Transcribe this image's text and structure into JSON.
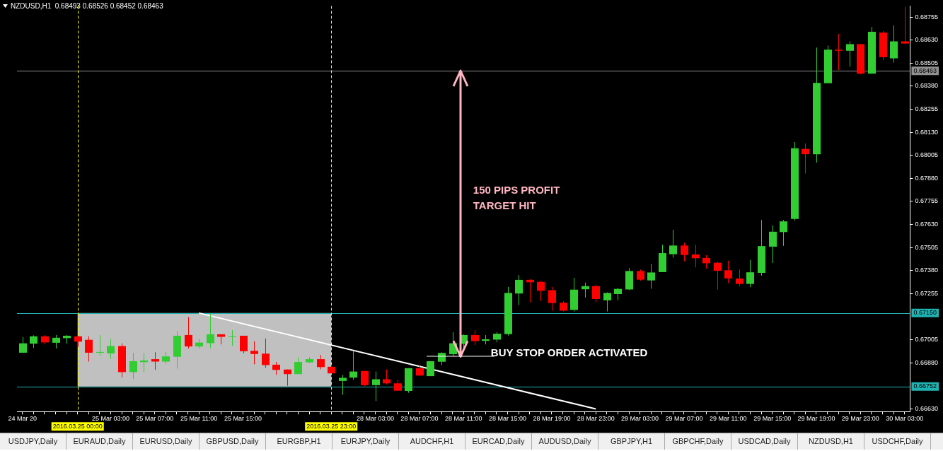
{
  "chart_data": {
    "type": "candlestick",
    "title": "NZDUSD,H1  0.68493 0.68526 0.68452 0.68463",
    "categories": [
      "24 Mar 20",
      null,
      null,
      null,
      null,
      "2016.03.25 00:00",
      null,
      null,
      "25 Mar 03:00",
      null,
      null,
      null,
      "25 Mar 07:00",
      null,
      null,
      null,
      "25 Mar 11:00",
      null,
      null,
      null,
      "25 Mar 15:00",
      null,
      null,
      null,
      null,
      null,
      null,
      null,
      "2016.03.25 23:00",
      null,
      null,
      null,
      "28 Mar 03:00",
      null,
      null,
      null,
      "28 Mar 07:00",
      null,
      null,
      null,
      "28 Mar 11:00",
      null,
      null,
      null,
      "28 Mar 15:00",
      null,
      null,
      null,
      "28 Mar 19:00",
      null,
      null,
      null,
      "28 Mar 23:00",
      null,
      null,
      null,
      "29 Mar 03:00",
      null,
      null,
      null,
      "29 Mar 07:00",
      null,
      null,
      null,
      "29 Mar 11:00",
      null,
      null,
      null,
      "29 Mar 15:00",
      null,
      null,
      null,
      "29 Mar 19:00",
      null,
      null,
      null,
      "29 Mar 23:00",
      null,
      null,
      null,
      "30 Mar 03:00"
    ],
    "ohlc": [
      [
        0.66935,
        0.6702,
        0.66933,
        0.66986
      ],
      [
        0.66984,
        0.67029,
        0.66961,
        0.67024
      ],
      [
        0.67024,
        0.67031,
        0.6698,
        0.66991
      ],
      [
        0.66989,
        0.67031,
        0.66958,
        0.67016
      ],
      [
        0.67014,
        0.67031,
        0.66984,
        0.67027
      ],
      [
        0.67024,
        0.67026,
        0.66966,
        0.66995
      ],
      [
        0.67005,
        0.67024,
        0.66887,
        0.66935
      ],
      [
        0.66935,
        0.67031,
        0.6692,
        0.66939
      ],
      [
        0.66931,
        0.67009,
        0.66901,
        0.66971
      ],
      [
        0.66971,
        0.66986,
        0.66801,
        0.6683
      ],
      [
        0.6683,
        0.66934,
        0.66793,
        0.66889
      ],
      [
        0.66884,
        0.66934,
        0.6683,
        0.66893
      ],
      [
        0.669,
        0.66938,
        0.66842,
        0.66887
      ],
      [
        0.66887,
        0.66941,
        0.66875,
        0.66915
      ],
      [
        0.66913,
        0.67053,
        0.66849,
        0.67027
      ],
      [
        0.67031,
        0.67128,
        0.66958,
        0.66969
      ],
      [
        0.66969,
        0.67009,
        0.66958,
        0.6699
      ],
      [
        0.66987,
        0.67146,
        0.66961,
        0.67035
      ],
      [
        0.67035,
        0.67035,
        0.6698,
        0.67021
      ],
      [
        0.67021,
        0.67057,
        0.66972,
        0.67024
      ],
      [
        0.67027,
        0.67027,
        0.66931,
        0.66943
      ],
      [
        0.66945,
        0.66997,
        0.66872,
        0.66928
      ],
      [
        0.6693,
        0.67012,
        0.66853,
        0.66868
      ],
      [
        0.6687,
        0.66885,
        0.66815,
        0.66842
      ],
      [
        0.66844,
        0.66844,
        0.66756,
        0.66819
      ],
      [
        0.66819,
        0.66911,
        0.66819,
        0.66885
      ],
      [
        0.66883,
        0.66911,
        0.66879,
        0.669
      ],
      [
        0.669,
        0.66923,
        0.66845,
        0.66857
      ],
      [
        0.66859,
        0.6687,
        0.66823,
        0.66823
      ],
      [
        0.66782,
        0.66814,
        0.66707,
        0.66799
      ],
      [
        0.668,
        0.66945,
        0.66789,
        0.66833
      ],
      [
        0.66836,
        0.66836,
        0.66755,
        0.66759
      ],
      [
        0.66759,
        0.66833,
        0.66673,
        0.66791
      ],
      [
        0.66791,
        0.66844,
        0.66763,
        0.66769
      ],
      [
        0.66769,
        0.66788,
        0.66729,
        0.66729
      ],
      [
        0.66728,
        0.66851,
        0.66718,
        0.66851
      ],
      [
        0.66851,
        0.6687,
        0.66811,
        0.66811
      ],
      [
        0.66808,
        0.66889,
        0.66808,
        0.66889
      ],
      [
        0.66886,
        0.66937,
        0.66867,
        0.66934
      ],
      [
        0.66927,
        0.67046,
        0.66916,
        0.66986
      ],
      [
        0.66983,
        0.67034,
        0.66957,
        0.67031
      ],
      [
        0.67031,
        0.67057,
        0.66976,
        0.66998
      ],
      [
        0.66999,
        0.67031,
        0.6698,
        0.67008
      ],
      [
        0.67006,
        0.67046,
        0.66991,
        0.67038
      ],
      [
        0.67036,
        0.67292,
        0.67028,
        0.67259
      ],
      [
        0.67256,
        0.67356,
        0.67193,
        0.6733
      ],
      [
        0.6733,
        0.67334,
        0.67208,
        0.67317
      ],
      [
        0.67319,
        0.67325,
        0.67215,
        0.67271
      ],
      [
        0.67274,
        0.67292,
        0.67163,
        0.67204
      ],
      [
        0.67206,
        0.67214,
        0.67159,
        0.67163
      ],
      [
        0.67167,
        0.67341,
        0.67159,
        0.67277
      ],
      [
        0.67279,
        0.67315,
        0.67234,
        0.67296
      ],
      [
        0.67296,
        0.67304,
        0.67208,
        0.67226
      ],
      [
        0.67219,
        0.67262,
        0.67159,
        0.67259
      ],
      [
        0.67253,
        0.67286,
        0.67219,
        0.67281
      ],
      [
        0.67278,
        0.67393,
        0.67275,
        0.67378
      ],
      [
        0.67378,
        0.67386,
        0.67326,
        0.67331
      ],
      [
        0.67327,
        0.67416,
        0.67282,
        0.6737
      ],
      [
        0.67372,
        0.6752,
        0.67372,
        0.67475
      ],
      [
        0.67469,
        0.67602,
        0.6745,
        0.67516
      ],
      [
        0.67516,
        0.67531,
        0.6743,
        0.67465
      ],
      [
        0.67468,
        0.6752,
        0.67398,
        0.67447
      ],
      [
        0.67449,
        0.67464,
        0.67391,
        0.6742
      ],
      [
        0.67423,
        0.67427,
        0.67278,
        0.67379
      ],
      [
        0.67382,
        0.67434,
        0.67312,
        0.67338
      ],
      [
        0.67337,
        0.67386,
        0.67297,
        0.67308
      ],
      [
        0.67308,
        0.67438,
        0.6729,
        0.67371
      ],
      [
        0.67368,
        0.67655,
        0.67353,
        0.67513
      ],
      [
        0.6751,
        0.67625,
        0.67421,
        0.67591
      ],
      [
        0.67589,
        0.67655,
        0.67514,
        0.67647
      ],
      [
        0.6766,
        0.68077,
        0.67652,
        0.68043
      ],
      [
        0.6804,
        0.6807,
        0.67906,
        0.68011
      ],
      [
        0.68011,
        0.68589,
        0.67966,
        0.68398
      ],
      [
        0.68396,
        0.686,
        0.68396,
        0.68578
      ],
      [
        0.68578,
        0.68664,
        0.68467,
        0.68572
      ],
      [
        0.68572,
        0.68623,
        0.68486,
        0.68608
      ],
      [
        0.68608,
        0.68608,
        0.68445,
        0.68448
      ],
      [
        0.68448,
        0.68701,
        0.68448,
        0.68675
      ],
      [
        0.68671,
        0.68679,
        0.68522,
        0.68537
      ],
      [
        0.68531,
        0.68709,
        0.68508,
        0.68623
      ],
      [
        0.68623,
        0.6881,
        0.68608,
        0.68611
      ]
    ],
    "colors": [
      "#32cd32",
      "#32cd32",
      "#ff0000",
      "#32cd32",
      "#32cd32",
      "#ff0000",
      "#ff0000",
      "#32cd32",
      "#32cd32",
      "#ff0000",
      "#32cd32",
      "#32cd32",
      "#ff0000",
      "#32cd32",
      "#32cd32",
      "#ff0000",
      "#32cd32",
      "#32cd32",
      "#ff0000",
      "#32cd32",
      "#ff0000",
      "#ff0000",
      "#ff0000",
      "#ff0000",
      "#ff0000",
      "#32cd32",
      "#32cd32",
      "#ff0000",
      "#ff0000",
      "#32cd32",
      "#32cd32",
      "#ff0000",
      "#32cd32",
      "#ff0000",
      "#ff0000",
      "#32cd32",
      "#ff0000",
      "#32cd32",
      "#32cd32",
      "#32cd32",
      "#32cd32",
      "#ff0000",
      "#32cd32",
      "#32cd32",
      "#32cd32",
      "#32cd32",
      "#ff0000",
      "#ff0000",
      "#ff0000",
      "#ff0000",
      "#32cd32",
      "#32cd32",
      "#ff0000",
      "#32cd32",
      "#32cd32",
      "#32cd32",
      "#ff0000",
      "#32cd32",
      "#32cd32",
      "#32cd32",
      "#ff0000",
      "#ff0000",
      "#ff0000",
      "#ff0000",
      "#ff0000",
      "#ff0000",
      "#32cd32",
      "#32cd32",
      "#32cd32",
      "#32cd32",
      "#32cd32",
      "#ff0000",
      "#32cd32",
      "#32cd32",
      "#ff0000",
      "#32cd32",
      "#ff0000",
      "#32cd32",
      "#ff0000",
      "#32cd32",
      "#ff0000"
    ],
    "series": [
      {
        "type": "line",
        "x": [
          "25 Mar 11:00",
          "28 Mar 23:00"
        ],
        "values": [
          0.6715,
          0.6663
        ],
        "color": "#ffffff"
      }
    ],
    "ylim": [
      0.66616,
      0.68815
    ],
    "yticks": [
      {
        "value": 0.6663,
        "label": "0.66630"
      },
      {
        "value": 0.6688,
        "label": "0.66880"
      },
      0.67005,
      0.67255,
      {
        "value": 0.6738,
        "label": "0.67380"
      },
      0.67505,
      {
        "value": 0.6763,
        "label": "0.67630"
      },
      0.67755,
      {
        "value": 0.6788,
        "label": "0.67880"
      },
      0.68005,
      {
        "value": 0.6813,
        "label": "0.68130"
      },
      0.68255,
      {
        "value": 0.6838,
        "label": "0.68380"
      },
      0.68505,
      {
        "value": 0.6863,
        "label": "0.68630"
      },
      0.68755
    ],
    "ref_lines": [
      {
        "axis": "y",
        "value": 0.6715,
        "label": "0.67150",
        "color": "#20b2b2"
      },
      {
        "axis": "y",
        "value": 0.66752,
        "label": "0.66752",
        "color": "#20b2b2"
      },
      {
        "axis": "y",
        "value": 0.68463,
        "label": "0.68463",
        "color": "#909090"
      },
      {
        "axis": "x",
        "value": "2016.03.25 00:00",
        "color": "#ffff00",
        "line_style": "dashed"
      },
      {
        "axis": "x",
        "value": "2016.03.25 23:00",
        "color": "#ffff00",
        "line_style": "dashed"
      }
    ],
    "bands": [
      {
        "axis": "x",
        "from": "2016.03.25 00:00",
        "to": "2016.03.25 23:00",
        "color": "#c0c0c0"
      }
    ],
    "annotations": [
      "150 PIPS PROFIT TARGET HIT",
      "BUY STOP ORDER ACTIVATED",
      "USDJPY,Daily",
      "EURAUD,Daily",
      "EURUSD,Daily",
      "GBPUSD,Daily",
      "EURGBP,H1",
      "EURJPY,Daily",
      "AUDCHF,H1",
      "EURCAD,Daily",
      "AUDUSD,Daily",
      "GBPJPY,H1",
      "GBPCHF,Daily",
      "USDCAD,Daily",
      "NZDUSD,H1",
      "USDCHF,Daily"
    ],
    "grid": false,
    "legend": false
  }
}
